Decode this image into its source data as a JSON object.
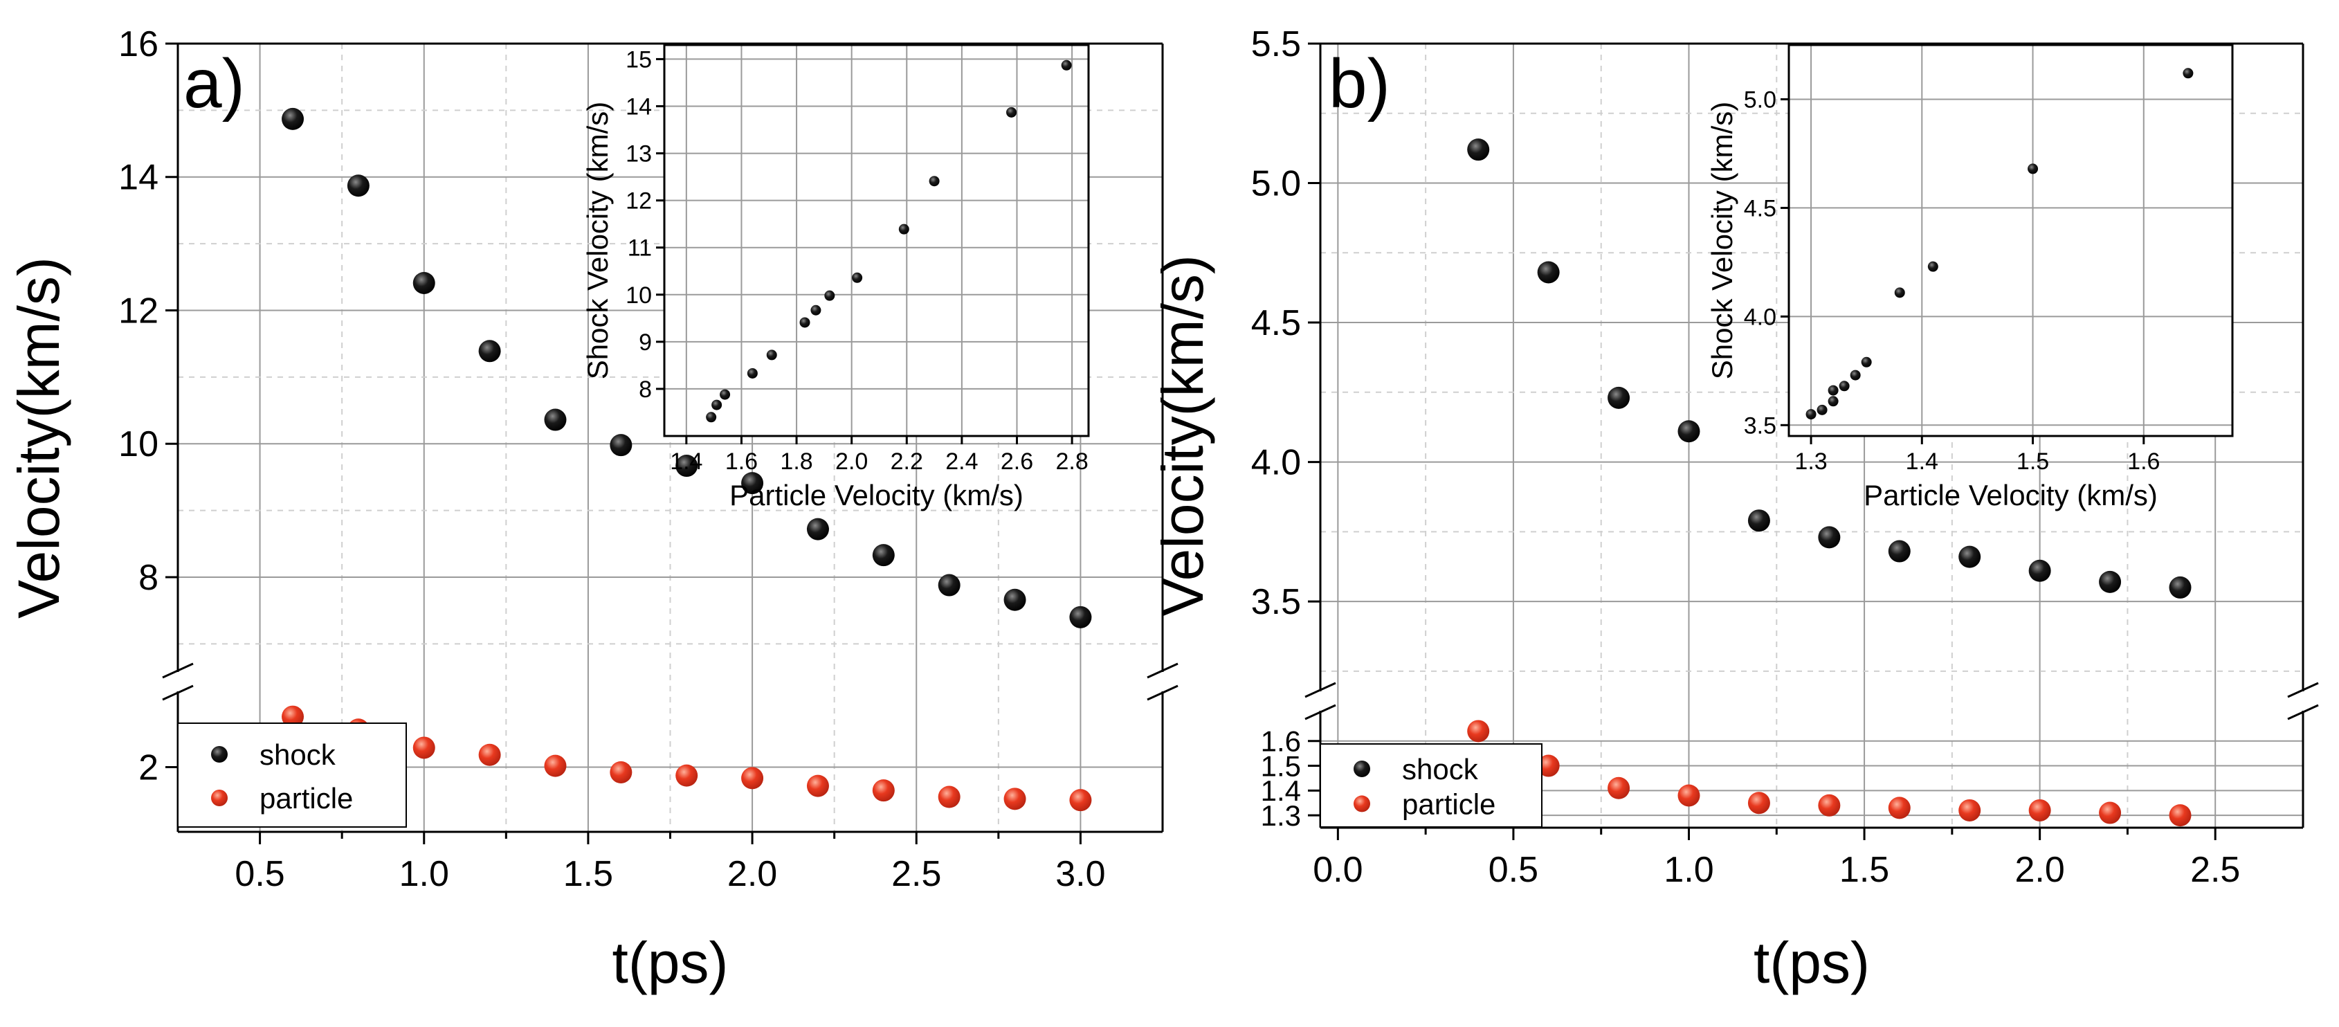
{
  "chart_data": [
    {
      "panel_label": "a)",
      "type": "scatter",
      "xlabel": "t(ps)",
      "ylabel": "Velocity(km/s)",
      "xlim": [
        0.25,
        3.25
      ],
      "xticks": [
        0.5,
        1.0,
        1.5,
        2.0,
        2.5,
        3.0
      ],
      "xtick_labels": [
        "0.5",
        "1.0",
        "1.5",
        "2.0",
        "2.5",
        "3.0"
      ],
      "y_axis_break": true,
      "ylim_upper": [
        6.9,
        16.0
      ],
      "yticks_upper": [
        8,
        10,
        12,
        14,
        16
      ],
      "ytick_labels_upper": [
        "8",
        "10",
        "12",
        "14",
        "16"
      ],
      "ylim_lower": [
        1.0,
        3.0
      ],
      "yticks_lower": [
        2
      ],
      "ytick_labels_lower": [
        "2"
      ],
      "grid": true,
      "legend_position": "bottom-left",
      "series": [
        {
          "name": "shock",
          "color": "#111111",
          "x": [
            0.6,
            0.8,
            1.0,
            1.2,
            1.4,
            1.6,
            1.8,
            2.0,
            2.2,
            2.4,
            2.6,
            2.8,
            3.0
          ],
          "y": [
            14.87,
            13.87,
            12.41,
            11.39,
            10.36,
            9.98,
            9.67,
            9.41,
            8.72,
            8.33,
            7.88,
            7.66,
            7.4
          ]
        },
        {
          "name": "particle",
          "color": "#e8391f",
          "x": [
            0.6,
            0.8,
            1.0,
            1.2,
            1.4,
            1.6,
            1.8,
            2.0,
            2.2,
            2.4,
            2.6,
            2.8,
            3.0
          ],
          "y": [
            2.78,
            2.58,
            2.3,
            2.19,
            2.02,
            1.92,
            1.87,
            1.83,
            1.71,
            1.64,
            1.54,
            1.51,
            1.49
          ]
        }
      ],
      "inset": {
        "type": "scatter",
        "xlabel": "Particle Velocity (km/s)",
        "ylabel": "Shock Velocity (km/s)",
        "xlim": [
          1.32,
          2.86
        ],
        "ylim": [
          7.0,
          15.3
        ],
        "xticks": [
          1.4,
          1.6,
          1.8,
          2.0,
          2.2,
          2.4,
          2.6,
          2.8
        ],
        "xtick_labels": [
          "1.4",
          "1.6",
          "1.8",
          "2.0",
          "2.2",
          "2.4",
          "2.6",
          "2.8"
        ],
        "yticks": [
          8,
          9,
          10,
          11,
          12,
          13,
          14,
          15
        ],
        "ytick_labels": [
          "8",
          "9",
          "10",
          "11",
          "12",
          "13",
          "14",
          "15"
        ],
        "grid": true,
        "x": [
          1.49,
          1.51,
          1.54,
          1.64,
          1.71,
          1.83,
          1.87,
          1.92,
          2.02,
          2.19,
          2.3,
          2.58,
          2.78
        ],
        "y": [
          7.4,
          7.66,
          7.88,
          8.33,
          8.72,
          9.41,
          9.67,
          9.98,
          10.36,
          11.39,
          12.41,
          13.87,
          14.87
        ]
      }
    },
    {
      "panel_label": "b)",
      "type": "scatter",
      "xlabel": "t(ps)",
      "ylabel": "Velocity(km/s)",
      "xlim": [
        -0.05,
        2.75
      ],
      "xticks": [
        0.0,
        0.5,
        1.0,
        1.5,
        2.0,
        2.5
      ],
      "xtick_labels": [
        "0.0",
        "0.5",
        "1.0",
        "1.5",
        "2.0",
        "2.5"
      ],
      "y_axis_break": true,
      "ylim_upper": [
        3.2,
        5.5
      ],
      "yticks_upper": [
        3.5,
        4.0,
        4.5,
        5.0,
        5.5
      ],
      "ytick_labels_upper": [
        "3.5",
        "4.0",
        "4.5",
        "5.0",
        "5.5"
      ],
      "ylim_lower": [
        1.25,
        1.7
      ],
      "yticks_lower": [
        1.3,
        1.4,
        1.5,
        1.6
      ],
      "ytick_labels_lower": [
        "1.3",
        "1.4",
        "1.5",
        "1.6"
      ],
      "grid": true,
      "legend_position": "bottom-left",
      "series": [
        {
          "name": "shock",
          "color": "#111111",
          "x": [
            0.4,
            0.6,
            0.8,
            1.0,
            1.2,
            1.4,
            1.6,
            1.8,
            2.0,
            2.2,
            2.4
          ],
          "y": [
            5.12,
            4.68,
            4.23,
            4.11,
            3.79,
            3.73,
            3.68,
            3.66,
            3.61,
            3.57,
            3.55
          ]
        },
        {
          "name": "particle",
          "color": "#e8391f",
          "x": [
            0.4,
            0.6,
            0.8,
            1.0,
            1.2,
            1.4,
            1.6,
            1.8,
            2.0,
            2.2,
            2.4
          ],
          "y": [
            1.64,
            1.5,
            1.41,
            1.38,
            1.35,
            1.34,
            1.33,
            1.32,
            1.32,
            1.31,
            1.3
          ]
        }
      ],
      "inset": {
        "type": "scatter",
        "xlabel": "Particle Velocity (km/s)",
        "ylabel": "Shock Velocity (km/s)",
        "xlim": [
          1.28,
          1.68
        ],
        "ylim": [
          3.45,
          5.25
        ],
        "xticks": [
          1.3,
          1.4,
          1.5,
          1.6
        ],
        "xtick_labels": [
          "1.3",
          "1.4",
          "1.5",
          "1.6"
        ],
        "yticks": [
          3.5,
          4.0,
          4.5,
          5.0
        ],
        "ytick_labels": [
          "3.5",
          "4.0",
          "4.5",
          "5.0"
        ],
        "grid": true,
        "x": [
          1.3,
          1.31,
          1.32,
          1.32,
          1.33,
          1.34,
          1.35,
          1.38,
          1.41,
          1.5,
          1.64
        ],
        "y": [
          3.55,
          3.57,
          3.61,
          3.66,
          3.68,
          3.73,
          3.79,
          4.11,
          4.23,
          4.68,
          5.12
        ]
      }
    }
  ]
}
